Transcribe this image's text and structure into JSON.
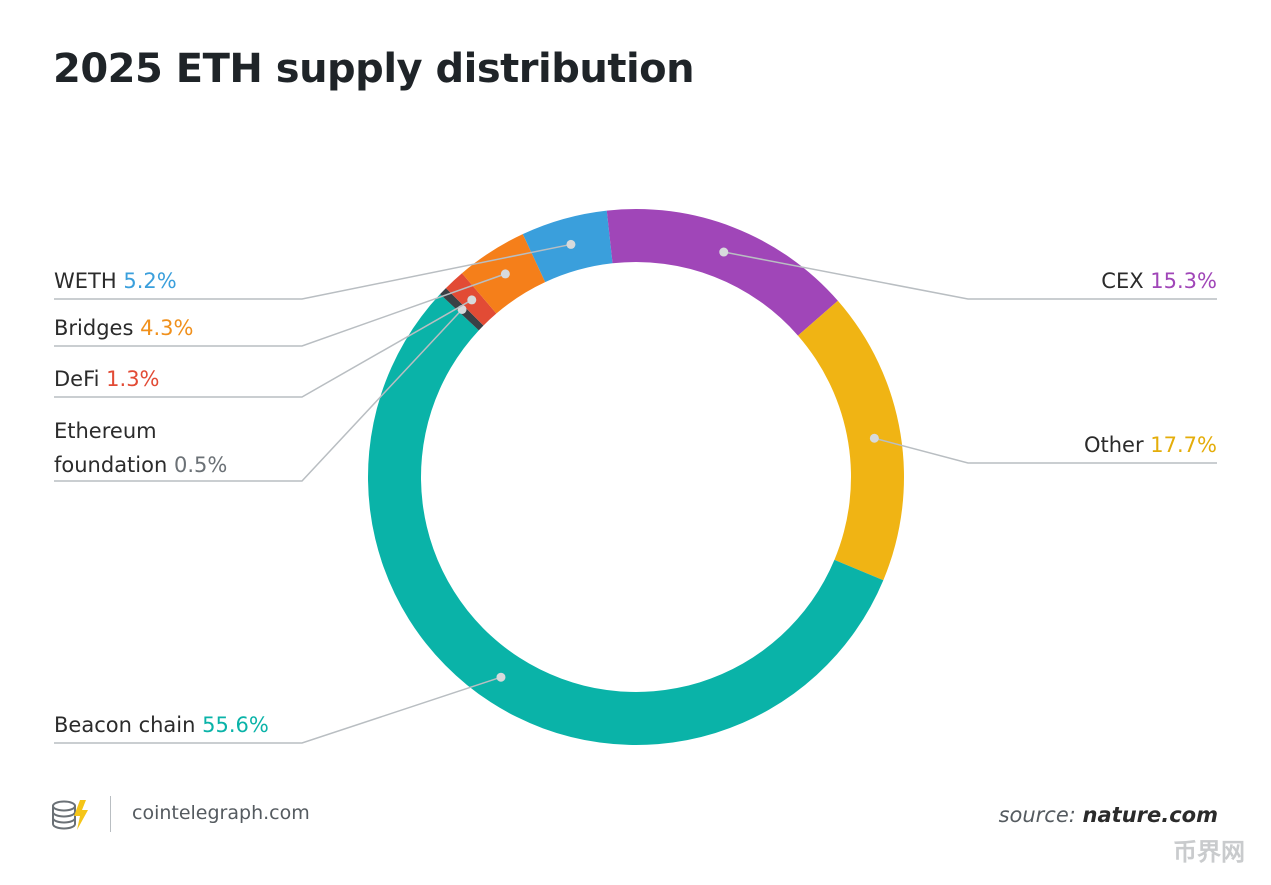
{
  "title": "2025 ETH supply distribution",
  "chart_data": {
    "type": "pie",
    "donut": true,
    "title": "2025 ETH supply distribution",
    "unit": "%",
    "slices": [
      {
        "key": "weth",
        "name": "WETH",
        "value": 5.2,
        "value_label": "5.2%",
        "color": "#3a9fdc"
      },
      {
        "key": "cex",
        "name": "CEX",
        "value": 15.3,
        "value_label": "15.3%",
        "color": "#a046b8"
      },
      {
        "key": "other",
        "name": "Other",
        "value": 17.7,
        "value_label": "17.7%",
        "color": "#f0b414"
      },
      {
        "key": "beacon",
        "name": "Beacon chain",
        "value": 55.6,
        "value_label": "55.6%",
        "color": "#0ab3a8"
      },
      {
        "key": "foundation",
        "name": "Ethereum foundation",
        "name_line1": "Ethereum",
        "name_line2": "foundation",
        "value": 0.5,
        "value_label": "0.5%",
        "color": "#3a4045"
      },
      {
        "key": "defi",
        "name": "DeFi",
        "value": 1.3,
        "value_label": "1.3%",
        "color": "#e24b35"
      },
      {
        "key": "bridges",
        "name": "Bridges",
        "value": 4.3,
        "value_label": "4.3%",
        "color": "#f57f1a"
      }
    ],
    "value_label_colors": {
      "weth": "#3a9fdc",
      "cex": "#a046b8",
      "other": "#e4ad0a",
      "beacon": "#0ab3a8",
      "foundation": "#6b7176",
      "defi": "#e24b35",
      "bridges": "#f0901c"
    }
  },
  "footer": {
    "site": "cointelegraph.com",
    "source_prefix": "source:",
    "source_domain": "nature.com",
    "watermark": "币界网"
  },
  "colors": {
    "leader_line": "#b9bec2",
    "dot": "#d7dadc"
  }
}
